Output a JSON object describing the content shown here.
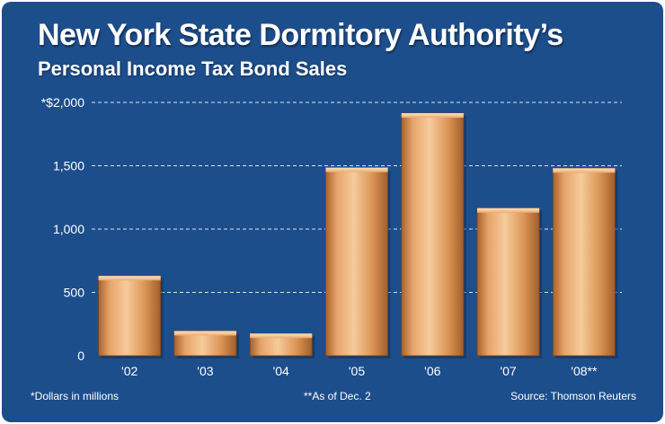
{
  "title": "New York State Dormitory Authority’s",
  "subtitle": "Personal Income Tax Bond Sales",
  "footnotes": {
    "units": "*Dollars in millions",
    "asof": "**As of Dec. 2",
    "source": "Source: Thomson Reuters"
  },
  "colors": {
    "background": "#1d4e8c",
    "bar_light": "#f3c08f",
    "bar_mid": "#d98f52",
    "bar_dark": "#9c5a26",
    "grid": "#ffffff"
  },
  "chart_data": {
    "type": "bar",
    "title": "New York State Dormitory Authority’s Personal Income Tax Bond Sales",
    "xlabel": "",
    "ylabel": "",
    "categories": [
      "'02",
      "'03",
      "'04",
      "'05",
      "'06",
      "'07",
      "'08**"
    ],
    "values": [
      630,
      195,
      175,
      1485,
      1915,
      1165,
      1480
    ],
    "ylim": [
      0,
      2000
    ],
    "yticks": [
      0,
      500,
      1000,
      1500,
      2000
    ],
    "ytick_labels": [
      "0",
      "500",
      "1,000",
      "1,500",
      "*$2,000"
    ],
    "grid": true
  }
}
